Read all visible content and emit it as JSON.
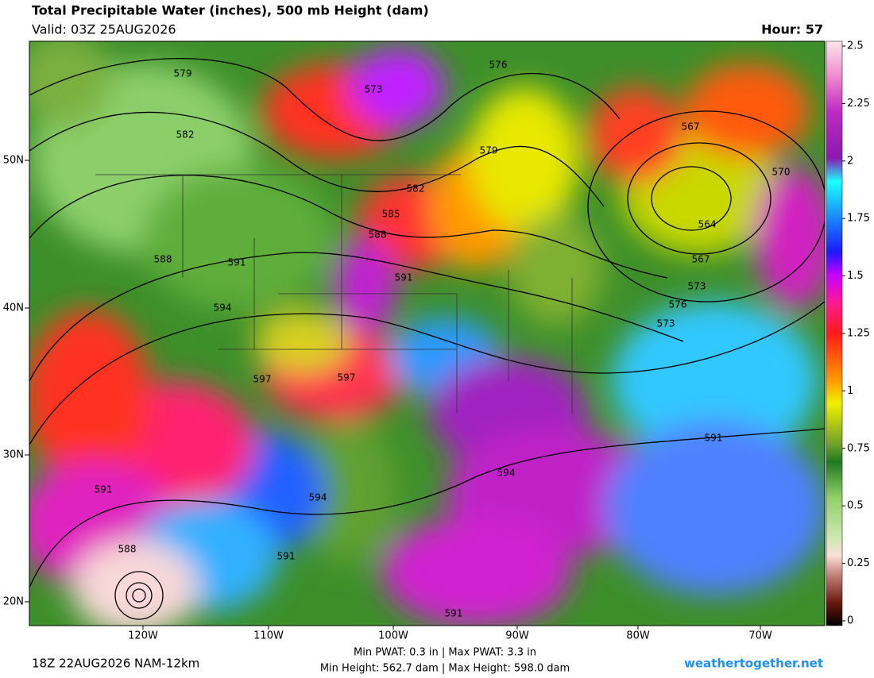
{
  "header": {
    "title": "Total Precipitable Water (inches), 500 mb Height (dam)",
    "valid": "Valid: 03Z 25AUG2026",
    "hour": "Hour: 57"
  },
  "map": {
    "lat_labels": [
      "50N",
      "40N",
      "30N",
      "20N"
    ],
    "lon_labels": [
      "120W",
      "110W",
      "100W",
      "90W",
      "80W",
      "70W"
    ],
    "contour_labels": [
      579,
      582,
      573,
      576,
      579,
      582,
      585,
      588,
      591,
      591,
      594,
      597,
      597,
      591,
      588,
      594,
      591,
      594,
      591,
      567,
      564,
      567,
      573,
      576,
      573,
      570,
      591,
      588
    ]
  },
  "colorbar": {
    "range": [
      0,
      2.5
    ],
    "ticks": [
      2.5,
      2.25,
      2,
      1.75,
      1.5,
      1.25,
      1,
      0.75,
      0.5,
      0.25,
      0
    ]
  },
  "footer": {
    "run": "18Z 22AUG2026 NAM-12km",
    "stats": [
      "Min PWAT:   0.3 in | Max PWAT:   3.3 in",
      "Min Height: 562.7 dam | Max Height: 598.0 dam"
    ],
    "credit": "weathertogether.net"
  }
}
